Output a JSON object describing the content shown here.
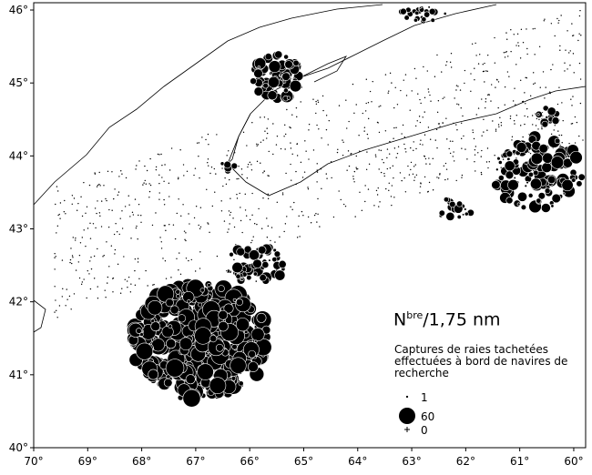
{
  "map": {
    "xaxis": {
      "xlim": [
        70,
        59.78
      ],
      "ticks": [
        {
          "value": 70,
          "label": "70°"
        },
        {
          "value": 69,
          "label": "69°"
        },
        {
          "value": 68,
          "label": "68°"
        },
        {
          "value": 67,
          "label": "67°"
        },
        {
          "value": 66,
          "label": "66°"
        },
        {
          "value": 65,
          "label": "65°"
        },
        {
          "value": 64,
          "label": "64°"
        },
        {
          "value": 63,
          "label": "63°"
        },
        {
          "value": 62,
          "label": "62°"
        },
        {
          "value": 61,
          "label": "61°"
        },
        {
          "value": 60,
          "label": "60°"
        }
      ]
    },
    "yaxis": {
      "ylim": [
        40,
        46.1
      ],
      "ticks": [
        {
          "value": 40,
          "label": "40°"
        },
        {
          "value": 41,
          "label": "41°"
        },
        {
          "value": 42,
          "label": "42°"
        },
        {
          "value": 43,
          "label": "43°"
        },
        {
          "value": 44,
          "label": "44°"
        },
        {
          "value": 45,
          "label": "45°"
        },
        {
          "value": 46,
          "label": "46°"
        }
      ]
    }
  },
  "legend": {
    "title_main": "N",
    "title_sup": "bre",
    "title_rest": "/1,75 nm",
    "caption_lines": [
      "Captures de raies tachetées",
      "effectuées à bord de navires de",
      "recherche"
    ],
    "items": [
      {
        "label": "1",
        "value": 1
      },
      {
        "label": "60",
        "value": 60
      },
      {
        "label": "0",
        "value": 0
      }
    ]
  }
}
